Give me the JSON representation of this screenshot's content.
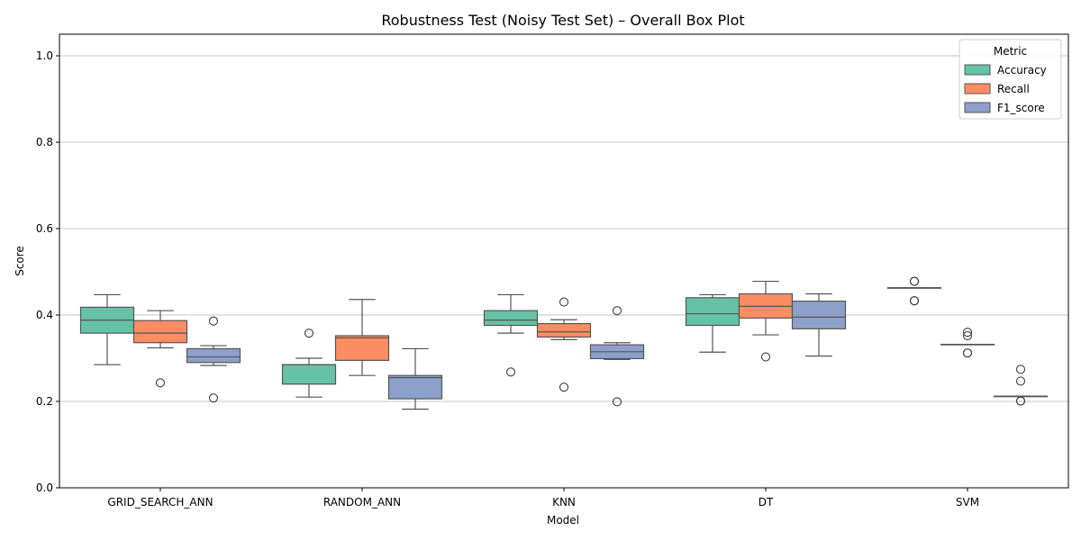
{
  "chart_data": {
    "type": "box",
    "title": "Robustness Test (Noisy Test Set) – Overall Box Plot",
    "xlabel": "Model",
    "ylabel": "Score",
    "ylim": [
      0.0,
      1.05
    ],
    "yticks": [
      "0.0",
      "0.2",
      "0.4",
      "0.6",
      "0.8",
      "1.0"
    ],
    "grid": "y",
    "legend": {
      "title": "Metric",
      "position": "top-right"
    },
    "categories": [
      "GRID_SEARCH_ANN",
      "RANDOM_ANN",
      "KNN",
      "DT",
      "SVM"
    ],
    "series": [
      {
        "name": "Accuracy",
        "color": "#66c2a5",
        "boxes": [
          {
            "whislo": 0.285,
            "q1": 0.358,
            "med": 0.388,
            "q3": 0.418,
            "whishi": 0.447,
            "fliers": []
          },
          {
            "whislo": 0.21,
            "q1": 0.24,
            "med": 0.285,
            "q3": 0.285,
            "whishi": 0.3,
            "fliers": [
              0.358
            ]
          },
          {
            "whislo": 0.358,
            "q1": 0.376,
            "med": 0.388,
            "q3": 0.41,
            "whishi": 0.447,
            "fliers": [
              0.268
            ]
          },
          {
            "whislo": 0.314,
            "q1": 0.376,
            "med": 0.403,
            "q3": 0.44,
            "whishi": 0.447,
            "fliers": []
          },
          {
            "whislo": 0.463,
            "q1": 0.463,
            "med": 0.463,
            "q3": 0.463,
            "whishi": 0.463,
            "fliers": [
              0.478,
              0.478,
              0.433,
              0.433
            ]
          }
        ]
      },
      {
        "name": "Recall",
        "color": "#fc8d62",
        "boxes": [
          {
            "whislo": 0.324,
            "q1": 0.336,
            "med": 0.358,
            "q3": 0.387,
            "whishi": 0.41,
            "fliers": [
              0.243
            ]
          },
          {
            "whislo": 0.26,
            "q1": 0.295,
            "med": 0.347,
            "q3": 0.352,
            "whishi": 0.436,
            "fliers": []
          },
          {
            "whislo": 0.343,
            "q1": 0.349,
            "med": 0.361,
            "q3": 0.38,
            "whishi": 0.389,
            "fliers": [
              0.43,
              0.233
            ]
          },
          {
            "whislo": 0.354,
            "q1": 0.393,
            "med": 0.42,
            "q3": 0.449,
            "whishi": 0.478,
            "fliers": [
              0.303
            ]
          },
          {
            "whislo": 0.332,
            "q1": 0.332,
            "med": 0.332,
            "q3": 0.332,
            "whishi": 0.332,
            "fliers": [
              0.36,
              0.352,
              0.312,
              0.312
            ]
          }
        ]
      },
      {
        "name": "F1_score",
        "color": "#8da0cb",
        "boxes": [
          {
            "whislo": 0.283,
            "q1": 0.29,
            "med": 0.303,
            "q3": 0.322,
            "whishi": 0.329,
            "fliers": [
              0.386,
              0.208
            ]
          },
          {
            "whislo": 0.182,
            "q1": 0.206,
            "med": 0.255,
            "q3": 0.26,
            "whishi": 0.322,
            "fliers": []
          },
          {
            "whislo": 0.297,
            "q1": 0.299,
            "med": 0.315,
            "q3": 0.331,
            "whishi": 0.336,
            "fliers": [
              0.41,
              0.199
            ]
          },
          {
            "whislo": 0.305,
            "q1": 0.368,
            "med": 0.395,
            "q3": 0.432,
            "whishi": 0.449,
            "fliers": []
          },
          {
            "whislo": 0.212,
            "q1": 0.212,
            "med": 0.212,
            "q3": 0.212,
            "whishi": 0.212,
            "fliers": [
              0.274,
              0.247,
              0.201,
              0.201
            ]
          }
        ]
      }
    ]
  }
}
